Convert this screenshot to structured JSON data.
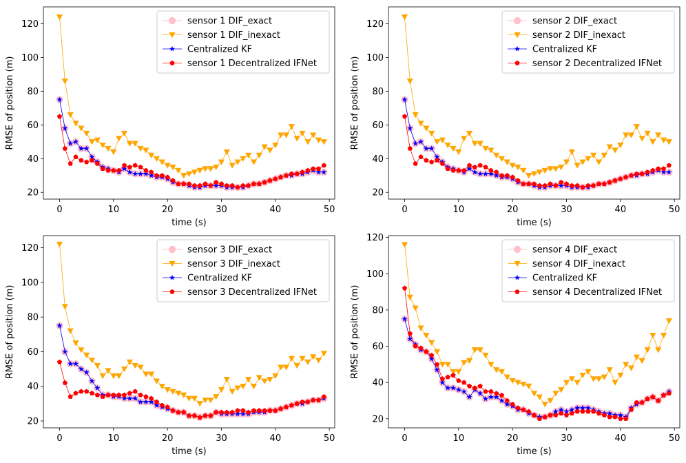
{
  "chart_data": [
    {
      "type": "line",
      "xlabel": "time (s)",
      "ylabel": "RMSE of position (m)",
      "xlim": [
        -3,
        51
      ],
      "ylim": [
        16,
        130
      ],
      "xticks": [
        0,
        10,
        20,
        30,
        40,
        50
      ],
      "yticks": [
        20,
        40,
        60,
        80,
        100,
        120
      ],
      "x": [
        0,
        1,
        2,
        3,
        4,
        5,
        6,
        7,
        8,
        9,
        10,
        11,
        12,
        13,
        14,
        15,
        16,
        17,
        18,
        19,
        20,
        21,
        22,
        23,
        24,
        25,
        26,
        27,
        28,
        29,
        30,
        31,
        32,
        33,
        34,
        35,
        36,
        37,
        38,
        39,
        40,
        41,
        42,
        43,
        44,
        45,
        46,
        47,
        48,
        49
      ],
      "series": [
        {
          "name": "sensor 1 DIF_exact",
          "color": "#ffc0cb",
          "marker": "circle",
          "values": [
            75,
            58,
            49,
            50,
            46,
            46,
            41,
            38,
            35,
            34,
            33,
            32,
            34,
            32,
            31,
            31,
            31,
            30,
            29,
            29,
            28,
            26,
            25,
            25,
            24,
            23,
            23,
            24,
            24,
            24,
            24,
            23,
            23,
            23,
            23,
            24,
            25,
            25,
            26,
            27,
            28,
            29,
            30,
            30,
            31,
            31,
            32,
            33,
            32,
            32
          ]
        },
        {
          "name": "sensor 1 DIF_inexact",
          "color": "#ffa500",
          "marker": "triangle-down",
          "values": [
            124,
            86,
            66,
            61,
            58,
            55,
            50,
            51,
            48,
            46,
            44,
            52,
            55,
            49,
            49,
            46,
            45,
            42,
            40,
            38,
            36,
            35,
            33,
            30,
            31,
            32,
            33,
            34,
            34,
            35,
            38,
            44,
            36,
            38,
            40,
            42,
            38,
            42,
            47,
            45,
            48,
            54,
            54,
            59,
            52,
            55,
            50,
            54,
            51,
            50
          ]
        },
        {
          "name": "Centralized KF",
          "color": "#0000ff",
          "marker": "star",
          "values": [
            75,
            58,
            49,
            50,
            46,
            46,
            41,
            38,
            35,
            34,
            33,
            32,
            34,
            32,
            31,
            31,
            31,
            30,
            29,
            29,
            28,
            26,
            25,
            25,
            24,
            23,
            23,
            24,
            24,
            24,
            24,
            23,
            23,
            23,
            23,
            24,
            25,
            25,
            26,
            27,
            28,
            29,
            30,
            30,
            31,
            31,
            32,
            33,
            32,
            32
          ]
        },
        {
          "name": "sensor 1 Decentralized IFNet",
          "color": "#ff0000",
          "marker": "pentagon",
          "values": [
            65,
            46,
            37,
            41,
            39,
            38,
            39,
            37,
            34,
            33,
            33,
            33,
            36,
            35,
            36,
            35,
            33,
            32,
            30,
            30,
            29,
            27,
            25,
            25,
            25,
            24,
            24,
            25,
            24,
            26,
            25,
            24,
            24,
            23,
            24,
            24,
            25,
            25,
            26,
            27,
            28,
            29,
            30,
            31,
            31,
            32,
            33,
            34,
            34,
            36
          ]
        }
      ]
    },
    {
      "type": "line",
      "xlabel": "time (s)",
      "ylabel": "RMSE of position (m)",
      "xlim": [
        -3,
        51
      ],
      "ylim": [
        16,
        130
      ],
      "xticks": [
        0,
        10,
        20,
        30,
        40,
        50
      ],
      "yticks": [
        20,
        40,
        60,
        80,
        100,
        120
      ],
      "x": [
        0,
        1,
        2,
        3,
        4,
        5,
        6,
        7,
        8,
        9,
        10,
        11,
        12,
        13,
        14,
        15,
        16,
        17,
        18,
        19,
        20,
        21,
        22,
        23,
        24,
        25,
        26,
        27,
        28,
        29,
        30,
        31,
        32,
        33,
        34,
        35,
        36,
        37,
        38,
        39,
        40,
        41,
        42,
        43,
        44,
        45,
        46,
        47,
        48,
        49
      ],
      "series": [
        {
          "name": "sensor 2 DIF_exact",
          "color": "#ffc0cb",
          "marker": "circle",
          "values": [
            75,
            58,
            49,
            50,
            46,
            46,
            41,
            38,
            35,
            34,
            33,
            32,
            34,
            32,
            31,
            31,
            31,
            30,
            29,
            29,
            28,
            26,
            25,
            25,
            24,
            23,
            23,
            24,
            24,
            24,
            24,
            23,
            23,
            23,
            23,
            24,
            25,
            25,
            26,
            27,
            28,
            29,
            30,
            30,
            31,
            31,
            32,
            33,
            32,
            32
          ]
        },
        {
          "name": "sensor 2 DIF_inexact",
          "color": "#ffa500",
          "marker": "triangle-down",
          "values": [
            124,
            86,
            66,
            61,
            58,
            55,
            50,
            51,
            48,
            46,
            44,
            52,
            55,
            49,
            49,
            46,
            45,
            42,
            40,
            38,
            36,
            35,
            33,
            30,
            31,
            32,
            33,
            34,
            34,
            35,
            38,
            44,
            36,
            38,
            40,
            42,
            38,
            42,
            47,
            45,
            48,
            54,
            54,
            59,
            52,
            55,
            50,
            54,
            51,
            50
          ]
        },
        {
          "name": "Centralized KF",
          "color": "#0000ff",
          "marker": "star",
          "values": [
            75,
            58,
            49,
            50,
            46,
            46,
            41,
            38,
            35,
            34,
            33,
            32,
            34,
            32,
            31,
            31,
            31,
            30,
            29,
            29,
            28,
            26,
            25,
            25,
            24,
            23,
            23,
            24,
            24,
            24,
            24,
            23,
            23,
            23,
            23,
            24,
            25,
            25,
            26,
            27,
            28,
            29,
            30,
            30,
            31,
            31,
            32,
            33,
            32,
            32
          ]
        },
        {
          "name": "sensor 2 Decentralized IFNet",
          "color": "#ff0000",
          "marker": "pentagon",
          "values": [
            65,
            46,
            37,
            41,
            39,
            38,
            39,
            37,
            34,
            33,
            33,
            33,
            36,
            35,
            36,
            35,
            33,
            32,
            30,
            30,
            29,
            27,
            25,
            25,
            25,
            24,
            24,
            25,
            24,
            26,
            25,
            24,
            24,
            23,
            24,
            24,
            25,
            25,
            26,
            27,
            28,
            29,
            30,
            31,
            31,
            32,
            33,
            34,
            34,
            36
          ]
        }
      ]
    },
    {
      "type": "line",
      "xlabel": "time (s)",
      "ylabel": "RMSE of position (m)",
      "xlim": [
        -3,
        51
      ],
      "ylim": [
        16,
        127
      ],
      "xticks": [
        0,
        10,
        20,
        30,
        40,
        50
      ],
      "yticks": [
        20,
        40,
        60,
        80,
        100,
        120
      ],
      "x": [
        0,
        1,
        2,
        3,
        4,
        5,
        6,
        7,
        8,
        9,
        10,
        11,
        12,
        13,
        14,
        15,
        16,
        17,
        18,
        19,
        20,
        21,
        22,
        23,
        24,
        25,
        26,
        27,
        28,
        29,
        30,
        31,
        32,
        33,
        34,
        35,
        36,
        37,
        38,
        39,
        40,
        41,
        42,
        43,
        44,
        45,
        46,
        47,
        48,
        49
      ],
      "series": [
        {
          "name": "sensor 3 DIF_exact",
          "color": "#ffc0cb",
          "marker": "circle",
          "values": [
            75,
            60,
            53,
            53,
            50,
            48,
            43,
            39,
            35,
            35,
            34,
            34,
            33,
            33,
            33,
            31,
            31,
            31,
            29,
            28,
            27,
            26,
            25,
            25,
            23,
            23,
            22,
            23,
            23,
            25,
            24,
            24,
            24,
            24,
            24,
            24,
            25,
            25,
            25,
            26,
            26,
            27,
            28,
            29,
            30,
            30,
            31,
            32,
            32,
            33
          ]
        },
        {
          "name": "sensor 3 DIF_inexact",
          "color": "#ffa500",
          "marker": "triangle-down",
          "values": [
            122,
            86,
            72,
            65,
            61,
            58,
            55,
            52,
            46,
            49,
            46,
            46,
            50,
            54,
            52,
            51,
            47,
            47,
            43,
            40,
            38,
            37,
            36,
            35,
            33,
            33,
            30,
            32,
            32,
            34,
            38,
            44,
            37,
            39,
            40,
            44,
            40,
            45,
            43,
            44,
            46,
            51,
            51,
            56,
            52,
            56,
            54,
            57,
            55,
            59
          ]
        },
        {
          "name": "Centralized KF",
          "color": "#0000ff",
          "marker": "star",
          "values": [
            75,
            60,
            53,
            53,
            50,
            48,
            43,
            39,
            35,
            35,
            34,
            34,
            33,
            33,
            33,
            31,
            31,
            31,
            29,
            28,
            27,
            26,
            25,
            25,
            23,
            23,
            22,
            23,
            23,
            25,
            24,
            24,
            24,
            24,
            24,
            24,
            25,
            25,
            25,
            26,
            26,
            27,
            28,
            29,
            30,
            30,
            31,
            32,
            32,
            33
          ]
        },
        {
          "name": "sensor 3 Decentralized IFNet",
          "color": "#ff0000",
          "marker": "pentagon",
          "values": [
            54,
            42,
            34,
            36,
            37,
            37,
            36,
            35,
            34,
            35,
            35,
            35,
            35,
            36,
            37,
            35,
            34,
            33,
            31,
            29,
            28,
            26,
            25,
            25,
            23,
            23,
            22,
            23,
            23,
            25,
            25,
            25,
            25,
            26,
            26,
            25,
            26,
            26,
            26,
            26,
            26,
            27,
            28,
            29,
            30,
            31,
            31,
            32,
            32,
            34
          ]
        }
      ]
    },
    {
      "type": "line",
      "xlabel": "time (s)",
      "ylabel": "RMSE of position (m)",
      "xlim": [
        -3,
        51
      ],
      "ylim": [
        15,
        121
      ],
      "xticks": [
        0,
        10,
        20,
        30,
        40,
        50
      ],
      "yticks": [
        20,
        40,
        60,
        80,
        100,
        120
      ],
      "x": [
        0,
        1,
        2,
        3,
        4,
        5,
        6,
        7,
        8,
        9,
        10,
        11,
        12,
        13,
        14,
        15,
        16,
        17,
        18,
        19,
        20,
        21,
        22,
        23,
        24,
        25,
        26,
        27,
        28,
        29,
        30,
        31,
        32,
        33,
        34,
        35,
        36,
        37,
        38,
        39,
        40,
        41,
        42,
        43,
        44,
        45,
        46,
        47,
        48,
        49
      ],
      "series": [
        {
          "name": "sensor 4 DIF_exact",
          "color": "#ffc0cb",
          "marker": "circle",
          "values": [
            75,
            64,
            61,
            58,
            57,
            53,
            47,
            40,
            37,
            37,
            36,
            35,
            32,
            36,
            34,
            31,
            32,
            32,
            30,
            28,
            27,
            25,
            25,
            23,
            22,
            21,
            21,
            22,
            24,
            25,
            24,
            25,
            26,
            26,
            26,
            25,
            24,
            23,
            23,
            22,
            22,
            21,
            26,
            28,
            29,
            31,
            32,
            30,
            33,
            35
          ]
        },
        {
          "name": "sensor 4 DIF_inexact",
          "color": "#ffa500",
          "marker": "triangle-down",
          "values": [
            116,
            87,
            81,
            70,
            66,
            62,
            57,
            50,
            50,
            46,
            46,
            51,
            52,
            58,
            58,
            55,
            50,
            47,
            46,
            43,
            41,
            40,
            39,
            38,
            34,
            32,
            28,
            30,
            34,
            36,
            40,
            42,
            40,
            44,
            46,
            42,
            42,
            43,
            47,
            40,
            44,
            50,
            48,
            54,
            52,
            58,
            66,
            58,
            66,
            74
          ]
        },
        {
          "name": "Centralized KF",
          "color": "#0000ff",
          "marker": "star",
          "values": [
            75,
            64,
            61,
            58,
            57,
            53,
            47,
            40,
            37,
            37,
            36,
            35,
            32,
            36,
            34,
            31,
            32,
            32,
            30,
            28,
            27,
            25,
            25,
            23,
            22,
            21,
            21,
            22,
            24,
            25,
            24,
            25,
            26,
            26,
            26,
            25,
            24,
            23,
            23,
            22,
            22,
            21,
            26,
            28,
            29,
            31,
            32,
            30,
            33,
            35
          ]
        },
        {
          "name": "sensor 4 Decentralized IFNet",
          "color": "#ff0000",
          "marker": "pentagon",
          "values": [
            92,
            67,
            60,
            59,
            57,
            55,
            50,
            42,
            43,
            44,
            41,
            40,
            38,
            37,
            38,
            35,
            35,
            34,
            33,
            30,
            28,
            26,
            25,
            24,
            22,
            20,
            21,
            22,
            22,
            23,
            22,
            23,
            24,
            24,
            24,
            24,
            23,
            22,
            21,
            21,
            20,
            20,
            25,
            29,
            29,
            31,
            32,
            30,
            33,
            34
          ]
        }
      ]
    }
  ]
}
